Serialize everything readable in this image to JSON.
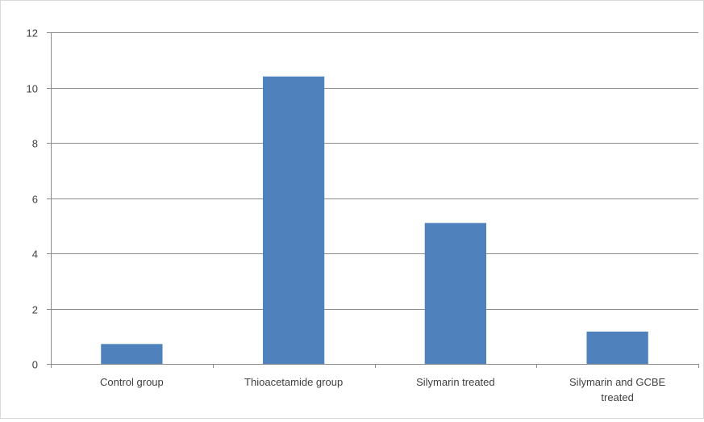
{
  "chart_data": {
    "type": "bar",
    "title": "",
    "xlabel": "",
    "ylabel": "",
    "categories": [
      [
        "Control group"
      ],
      [
        "Thioacetamide group"
      ],
      [
        "Silymarin treated"
      ],
      [
        "Silymarin  and GCBE",
        "treated"
      ]
    ],
    "values": [
      0.72,
      10.4,
      5.1,
      1.17
    ],
    "ylim": [
      0,
      12
    ],
    "yticks": [
      "0",
      "2",
      "4",
      "6",
      "8",
      "10",
      "12"
    ],
    "grid": true,
    "legend": "none",
    "bar_color": "#4F81BD",
    "grid_color": "#8c8c8c",
    "axis_color": "#8c8c8c"
  }
}
